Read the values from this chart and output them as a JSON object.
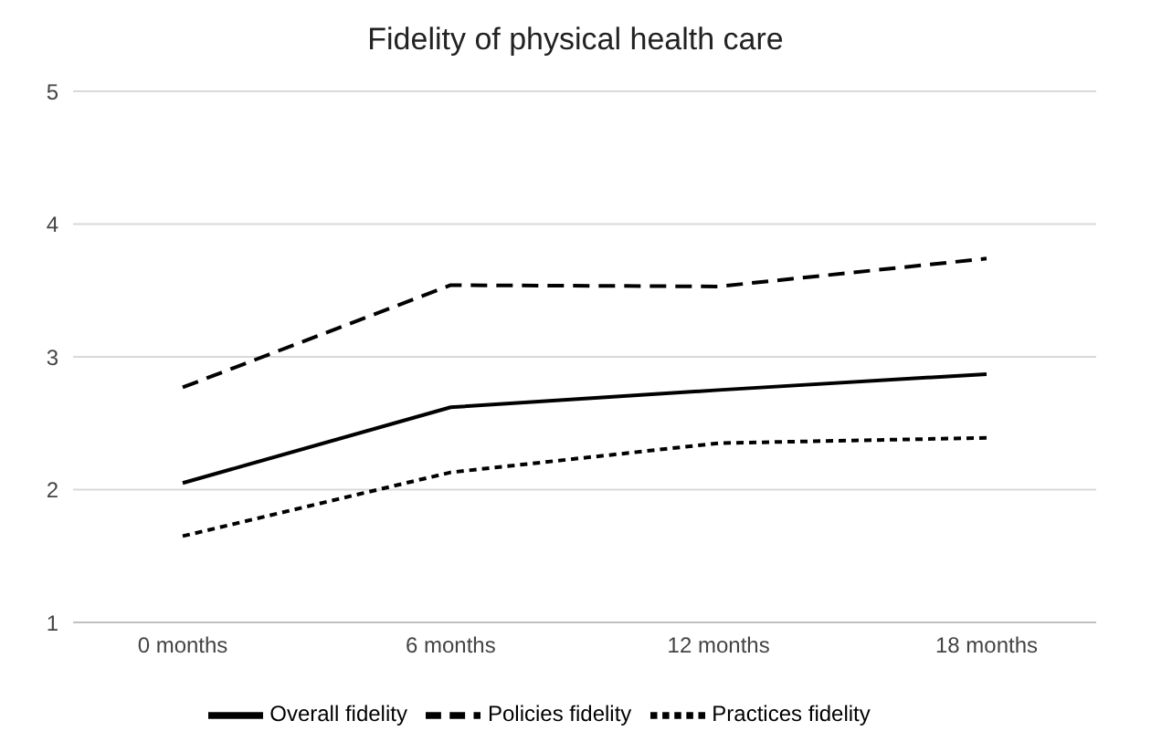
{
  "chart_data": {
    "type": "line",
    "title": "Fidelity of physical health care",
    "categories": [
      "0 months",
      "6 months",
      "12 months",
      "18 months"
    ],
    "series": [
      {
        "name": "Overall fidelity",
        "color": "#000000",
        "line_style": "solid",
        "values": [
          2.05,
          2.62,
          2.75,
          2.87
        ]
      },
      {
        "name": "Policies fidelity",
        "color": "#000000",
        "line_style": "dashed",
        "values": [
          2.77,
          3.54,
          3.53,
          3.74
        ]
      },
      {
        "name": "Practices fidelity",
        "color": "#000000",
        "line_style": "dotted",
        "values": [
          1.65,
          2.13,
          2.35,
          2.39
        ]
      }
    ],
    "ylim": [
      1,
      5
    ],
    "yticks": [
      1,
      2,
      3,
      4,
      5
    ],
    "grid": "y",
    "legend": "bottom",
    "marker": "none"
  }
}
